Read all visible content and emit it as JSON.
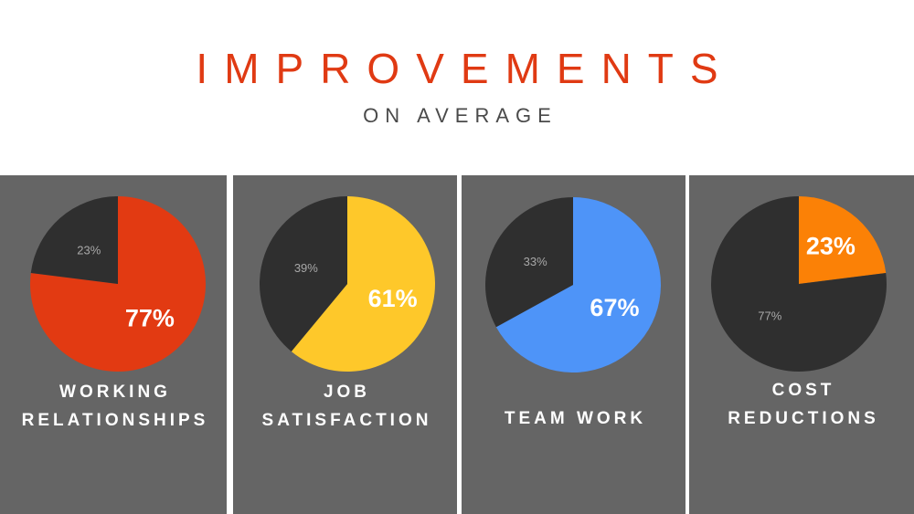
{
  "header": {
    "title": "IMPROVEMENTS",
    "subtitle": "ON AVERAGE"
  },
  "chart_data": [
    {
      "type": "pie",
      "labels": [
        "WORKING",
        "RELATIONSHIPS"
      ],
      "slices": [
        {
          "value": 77,
          "label": "77%",
          "color": "#e23a12"
        },
        {
          "value": 23,
          "label": "23%",
          "color": "#2f2f2f"
        }
      ]
    },
    {
      "type": "pie",
      "labels": [
        "JOB",
        "SATISFACTION"
      ],
      "slices": [
        {
          "value": 61,
          "label": "61%",
          "color": "#fec82a"
        },
        {
          "value": 39,
          "label": "39%",
          "color": "#2f2f2f"
        }
      ]
    },
    {
      "type": "pie",
      "labels": [
        "TEAM WORK"
      ],
      "slices": [
        {
          "value": 67,
          "label": "67%",
          "color": "#4e94f8"
        },
        {
          "value": 33,
          "label": "33%",
          "color": "#2f2f2f"
        }
      ]
    },
    {
      "type": "pie",
      "labels": [
        "COST",
        "REDUCTIONS"
      ],
      "slices": [
        {
          "value": 23,
          "label": "23%",
          "color": "#fb8106"
        },
        {
          "value": 77,
          "label": "77%",
          "color": "#2f2f2f"
        }
      ]
    }
  ]
}
